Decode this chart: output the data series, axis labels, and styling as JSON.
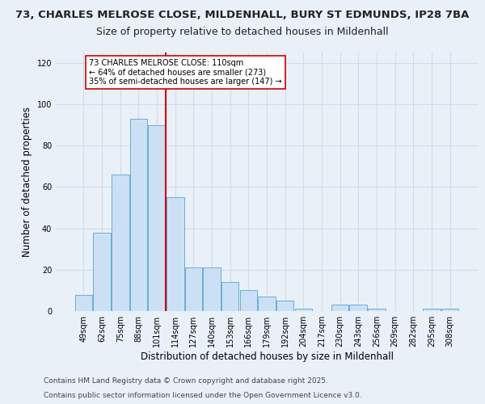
{
  "title_line1": "73, CHARLES MELROSE CLOSE, MILDENHALL, BURY ST EDMUNDS, IP28 7BA",
  "title_line2": "Size of property relative to detached houses in Mildenhall",
  "xlabel": "Distribution of detached houses by size in Mildenhall",
  "ylabel": "Number of detached properties",
  "categories": [
    "49sqm",
    "62sqm",
    "75sqm",
    "88sqm",
    "101sqm",
    "114sqm",
    "127sqm",
    "140sqm",
    "153sqm",
    "166sqm",
    "179sqm",
    "192sqm",
    "204sqm",
    "217sqm",
    "230sqm",
    "243sqm",
    "256sqm",
    "269sqm",
    "282sqm",
    "295sqm",
    "308sqm"
  ],
  "values": [
    8,
    38,
    66,
    93,
    90,
    55,
    21,
    21,
    14,
    10,
    7,
    5,
    1,
    0,
    3,
    3,
    1,
    0,
    0,
    1,
    1
  ],
  "bar_color": "#cce0f5",
  "bar_edge_color": "#6aaed6",
  "red_line_index": 5,
  "red_line_color": "#cc0000",
  "annotation_title": "73 CHARLES MELROSE CLOSE: 110sqm",
  "annotation_line2": "← 64% of detached houses are smaller (273)",
  "annotation_line3": "35% of semi-detached houses are larger (147) →",
  "annotation_box_color": "#ffffff",
  "annotation_border_color": "#cc0000",
  "ylim": [
    0,
    125
  ],
  "yticks": [
    0,
    20,
    40,
    60,
    80,
    100,
    120
  ],
  "footnote1": "Contains HM Land Registry data © Crown copyright and database right 2025.",
  "footnote2": "Contains public sector information licensed under the Open Government Licence v3.0.",
  "bg_color": "#eaf0f8",
  "plot_bg_color": "#eaf0f8",
  "grid_color": "#d0dce8",
  "title_fontsize": 9.5,
  "subtitle_fontsize": 9,
  "axis_label_fontsize": 8.5,
  "tick_fontsize": 7,
  "footnote_fontsize": 6.5
}
